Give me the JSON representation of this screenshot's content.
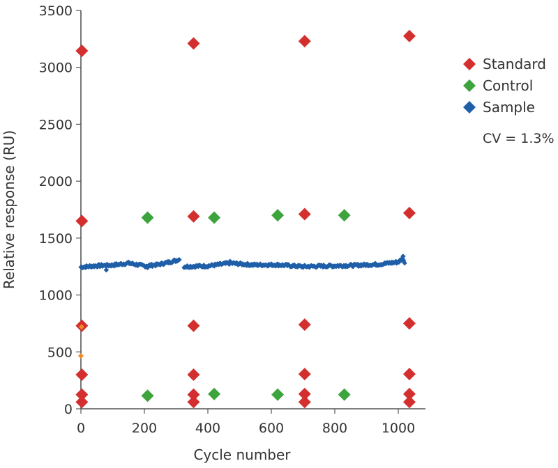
{
  "chart_data": {
    "type": "scatter",
    "xlabel": "Cycle number",
    "ylabel": "Relative response (RU)",
    "xlim": [
      -10,
      1080
    ],
    "ylim": [
      0,
      3500
    ],
    "xticks": [
      "0",
      "200",
      "400",
      "600",
      "800",
      "1000"
    ],
    "xtick_values": [
      0,
      200,
      400,
      600,
      800,
      1000
    ],
    "yticks": [
      "0",
      "500",
      "1000",
      "1500",
      "2000",
      "2500",
      "3000",
      "3500"
    ],
    "ytick_values": [
      0,
      500,
      1000,
      1500,
      2000,
      2500,
      3000,
      3500
    ],
    "grid": false,
    "legend_position": "right",
    "annotation": "CV = 1.3%",
    "colors": {
      "standard": "#d42f2f",
      "control": "#3da33d",
      "sample": "#1f5fa8",
      "orange": "#f08a24"
    },
    "series": [
      {
        "name": "Standard",
        "color": "#d42f2f",
        "marker": "diamond",
        "points": [
          [
            3,
            3145
          ],
          [
            3,
            1650
          ],
          [
            3,
            730
          ],
          [
            3,
            300
          ],
          [
            3,
            125
          ],
          [
            3,
            60
          ],
          [
            355,
            3210
          ],
          [
            355,
            1690
          ],
          [
            355,
            730
          ],
          [
            355,
            300
          ],
          [
            355,
            125
          ],
          [
            355,
            60
          ],
          [
            705,
            3230
          ],
          [
            705,
            1710
          ],
          [
            705,
            740
          ],
          [
            705,
            305
          ],
          [
            705,
            130
          ],
          [
            705,
            60
          ],
          [
            1035,
            3275
          ],
          [
            1035,
            1720
          ],
          [
            1035,
            750
          ],
          [
            1035,
            305
          ],
          [
            1035,
            130
          ],
          [
            1035,
            60
          ]
        ]
      },
      {
        "name": "Control",
        "color": "#3da33d",
        "marker": "diamond",
        "points": [
          [
            210,
            1680
          ],
          [
            210,
            115
          ],
          [
            420,
            1680
          ],
          [
            420,
            130
          ],
          [
            620,
            1700
          ],
          [
            620,
            125
          ],
          [
            830,
            1700
          ],
          [
            830,
            125
          ]
        ]
      },
      {
        "name": "Sample",
        "color": "#1f5fa8",
        "marker": "diamond",
        "segments": [
          [
            [
              0,
              1245
            ],
            [
              40,
              1255
            ],
            [
              80,
              1260
            ],
            [
              100,
              1262
            ],
            [
              150,
              1280
            ],
            [
              200,
              1255
            ],
            [
              240,
              1265
            ],
            [
              280,
              1290
            ],
            [
              310,
              1310
            ]
          ],
          [
            [
              325,
              1250
            ],
            [
              400,
              1255
            ],
            [
              470,
              1280
            ],
            [
              540,
              1265
            ],
            [
              620,
              1265
            ],
            [
              700,
              1250
            ],
            [
              780,
              1255
            ],
            [
              860,
              1260
            ],
            [
              940,
              1270
            ],
            [
              1000,
              1290
            ],
            [
              1015,
              1320
            ],
            [
              1020,
              1280
            ]
          ]
        ]
      }
    ],
    "extra_points": [
      {
        "color": "#f08a24",
        "points": [
          [
            2,
            720
          ],
          [
            0,
            465
          ]
        ]
      }
    ]
  }
}
